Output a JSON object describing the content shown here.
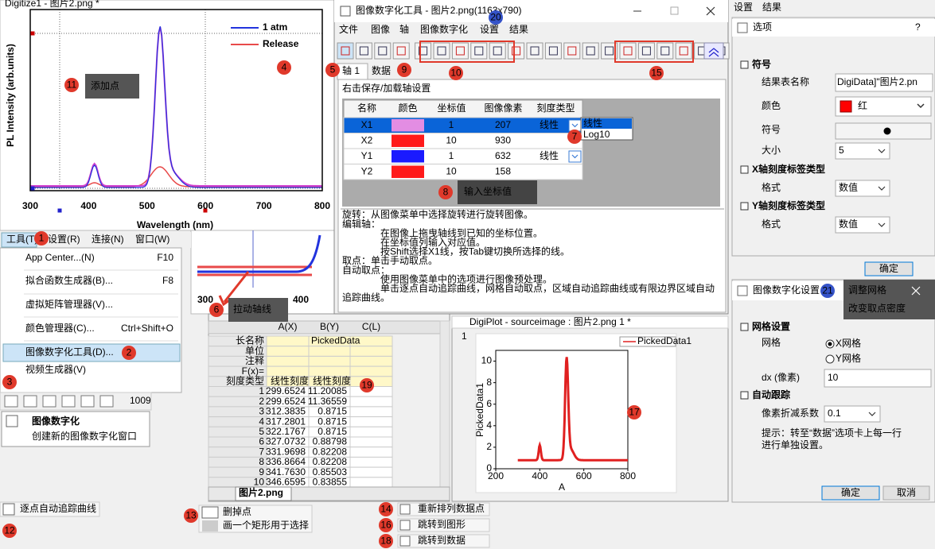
{
  "digitizer": {
    "title": "Digitize1 - 图片2.png *",
    "y_label": "PL Intensity (arb.units)",
    "x_label": "Wavelength (nm)",
    "x_ticks": [
      "300",
      "400",
      "500",
      "600",
      "700",
      "800"
    ],
    "legend": [
      "1 atm",
      "Release"
    ],
    "zoom_ticks": [
      "300",
      "400"
    ]
  },
  "menu_bar": [
    "工具(T)",
    "设置(R)",
    "连接(N)",
    "窗口(W)"
  ],
  "tools_menu": [
    {
      "label": "App Center...(N)",
      "shortcut": "F10"
    },
    {
      "label": "拟合函数生成器(B)...",
      "shortcut": "F8"
    },
    {
      "label": "虚拟矩阵管理器(V)..."
    },
    {
      "label": "颜色管理器(C)...",
      "shortcut": "Ctrl+Shift+O"
    },
    {
      "label": "图像数字化工具(D)..."
    },
    {
      "label": "视频生成器(V)"
    }
  ],
  "toolbar_zoom": "1009",
  "tooltip_new": {
    "title": "图像数字化",
    "text": "创建新的图像数字化窗口"
  },
  "dialog": {
    "title": "图像数字化工具 - 图片2.png(1163x790)",
    "menu": [
      "文件",
      "图像",
      "轴",
      "图像数字化",
      "设置",
      "结果"
    ],
    "tabs": [
      "轴 1",
      "数据"
    ],
    "hint": "右击保存/加载轴设置",
    "table": {
      "header": [
        "名称",
        "颜色",
        "坐标值",
        "图像像素",
        "刻度类型"
      ],
      "rows": [
        {
          "name": "X1",
          "color": "#e38de3",
          "value": "1",
          "pixel": "207",
          "scale": "线性"
        },
        {
          "name": "X2",
          "color": "#ff1a1a",
          "value": "10",
          "pixel": "930"
        },
        {
          "name": "Y1",
          "color": "#1a1aff",
          "value": "1",
          "pixel": "632",
          "scale": "线性"
        },
        {
          "name": "Y2",
          "color": "#ff1a1a",
          "value": "10",
          "pixel": "158"
        }
      ]
    },
    "dropdown": [
      "线性",
      "Log10"
    ],
    "help": [
      "旋转：从图像菜单中选择旋转进行旋转图像。",
      "编辑轴：",
      "在图像上拖曳轴线到已知的坐标位置。",
      "在坐标值列输入对应值。",
      "按Shift选择X1线，按Tab键切换所选择的线。",
      "取点：单击手动取点。",
      "自动取点：",
      "使用图像菜单中的选项进行图像预处理。",
      "单击逐点自动追踪曲线，网格自动取点，区域自动追踪曲线或有限边界区域自动",
      "追踪曲线。"
    ]
  },
  "options": {
    "menu": [
      "设置",
      "结果"
    ],
    "title": "选项",
    "help": "?",
    "symbol_section": "符号",
    "sheet_name_label": "结果表名称",
    "sheet_name": "DigiData]\"图片2.pn",
    "color_label": "颜色",
    "color_value": "红",
    "symbol_label": "符号",
    "size_label": "大小",
    "size": "5",
    "x_section": "X轴刻度标签类型",
    "y_section": "Y轴刻度标签类型",
    "format_label": "格式",
    "x_format": "数值",
    "y_format": "数值",
    "ok": "确定"
  },
  "settings": {
    "title": "图像数字化设置",
    "grid_section": "网格设置",
    "grid_label": "网格",
    "grid_options": [
      "X网格",
      "Y网格"
    ],
    "dx_label": "dx (像素)",
    "dx": "10",
    "trace_section": "自动跟踪",
    "reduce_label": "像素折减系数",
    "reduce": "0.1",
    "hint": [
      "提示：转至“数据”选项卡上每一行",
      "进行单独设置。"
    ],
    "ok": "确定",
    "cancel": "取消"
  },
  "worksheet": {
    "columns": [
      "A(X)",
      "B(Y)",
      "C(L)"
    ],
    "meta_labels": [
      "长名称",
      "单位",
      "注释",
      "F(x)=",
      "刻度类型"
    ],
    "long_name": "PickedData",
    "scale_types": [
      "线性刻度",
      "线性刻度"
    ],
    "rows": [
      {
        "n": "1",
        "x": "299.6524",
        "y": "11.20085"
      },
      {
        "n": "2",
        "x": "299.6524",
        "y": "11.36559"
      },
      {
        "n": "3",
        "x": "312.3835",
        "y": "0.8715"
      },
      {
        "n": "4",
        "x": "317.2801",
        "y": "0.8715"
      },
      {
        "n": "5",
        "x": "322.1767",
        "y": "0.8715"
      },
      {
        "n": "6",
        "x": "327.0732",
        "y": "0.88798"
      },
      {
        "n": "7",
        "x": "331.9698",
        "y": "0.82208"
      },
      {
        "n": "8",
        "x": "336.8664",
        "y": "0.82208"
      },
      {
        "n": "9",
        "x": "341.7630",
        "y": "0.85503"
      },
      {
        "n": "10",
        "x": "346.6595",
        "y": "0.83855"
      }
    ],
    "sheet_tab": "图片2.png"
  },
  "digiplot": {
    "title": "DigiPlot - sourceimage : 图片2.png 1 *",
    "layer": "1",
    "legend": "PickedData1",
    "y_label": "PickedData1",
    "x_label": "A",
    "xlim": [
      200,
      800
    ],
    "xticks": [
      200,
      400,
      600,
      800
    ],
    "ylim": [
      0,
      11
    ],
    "yticks": [
      0,
      2,
      4,
      6,
      8,
      10
    ]
  },
  "callouts": {
    "add_point": "添加点",
    "drag_axis": "拉动轴线",
    "enter_values": "输入坐标值",
    "grid_hint": [
      "调整网格",
      "改变取点密度"
    ]
  },
  "bottom_tips": {
    "auto_trace": "逐点自动追踪曲线",
    "delete": "删掉点",
    "rect": "画一个矩形用于选择",
    "reorder": "重新排列数据点",
    "goto_graph": "跳转到图形",
    "goto_data": "跳转到数据"
  },
  "badges": [
    "1",
    "2",
    "3",
    "4",
    "5",
    "6",
    "7",
    "8",
    "9",
    "10",
    "11",
    "12",
    "13",
    "14",
    "15",
    "16",
    "17",
    "18",
    "19",
    "20",
    "21"
  ]
}
